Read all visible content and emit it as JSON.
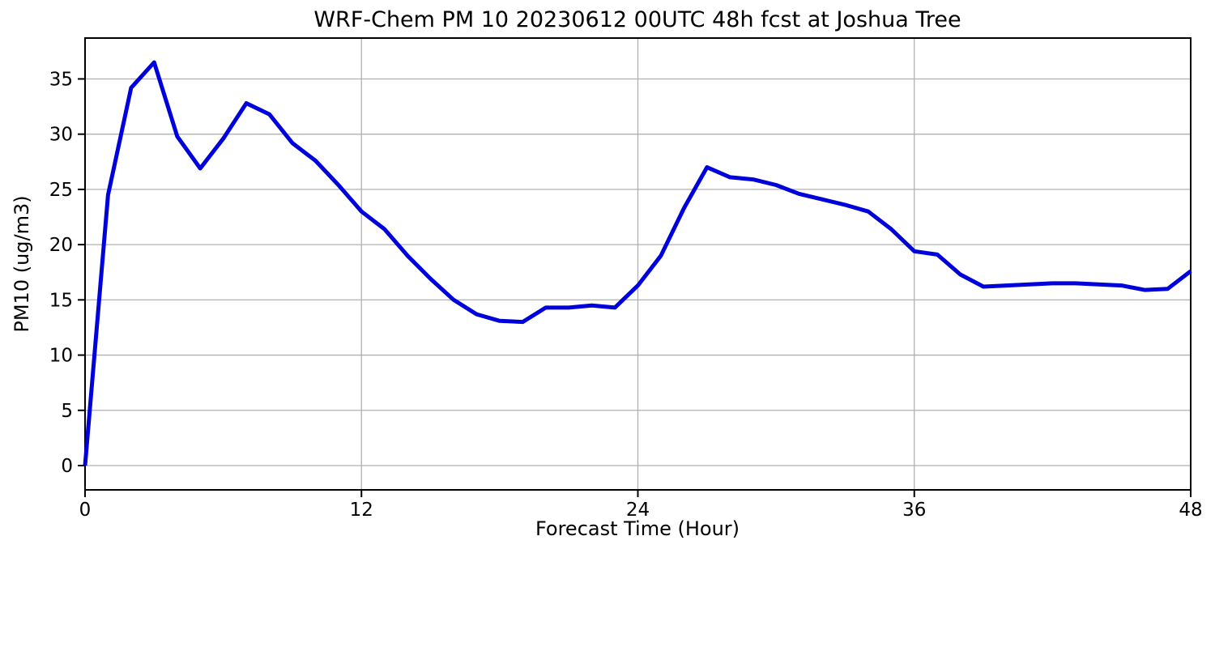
{
  "page": {
    "background_color": "#ffffff"
  },
  "chart_data": {
    "type": "line",
    "title": "WRF-Chem PM 10  20230612 00UTC 48h fcst at Joshua Tree",
    "xlabel": "Forecast Time (Hour)",
    "ylabel": "PM10  (ug/m3)",
    "xlim": [
      0,
      48
    ],
    "ylim": [
      -2.2,
      38.7
    ],
    "xticks": [
      0,
      12,
      24,
      36,
      48
    ],
    "yticks": [
      0,
      5,
      10,
      15,
      20,
      25,
      30,
      35
    ],
    "grid": true,
    "grid_color": "#b0b0b0",
    "line_color": "#0000dd",
    "line_width": 5,
    "axis_color": "#000000",
    "legend": "none",
    "x": [
      0,
      1,
      2,
      3,
      4,
      5,
      6,
      7,
      8,
      9,
      10,
      11,
      12,
      13,
      14,
      15,
      16,
      17,
      18,
      19,
      20,
      21,
      22,
      23,
      24,
      25,
      26,
      27,
      28,
      29,
      30,
      31,
      32,
      33,
      34,
      35,
      36,
      37,
      38,
      39,
      40,
      41,
      42,
      43,
      44,
      45,
      46,
      47,
      48
    ],
    "y": [
      0.0,
      24.5,
      34.2,
      36.5,
      29.8,
      26.9,
      29.6,
      32.8,
      31.8,
      29.2,
      27.6,
      25.4,
      23.0,
      21.4,
      19.0,
      16.9,
      15.0,
      13.7,
      13.1,
      13.0,
      14.3,
      14.3,
      14.5,
      14.3,
      16.3,
      19.0,
      23.3,
      27.0,
      26.1,
      25.9,
      25.4,
      24.6,
      24.1,
      23.6,
      23.0,
      21.4,
      19.4,
      19.1,
      17.3,
      16.2,
      16.3,
      16.4,
      16.5,
      16.5,
      16.4,
      16.3,
      15.9,
      16.0,
      17.6
    ]
  }
}
